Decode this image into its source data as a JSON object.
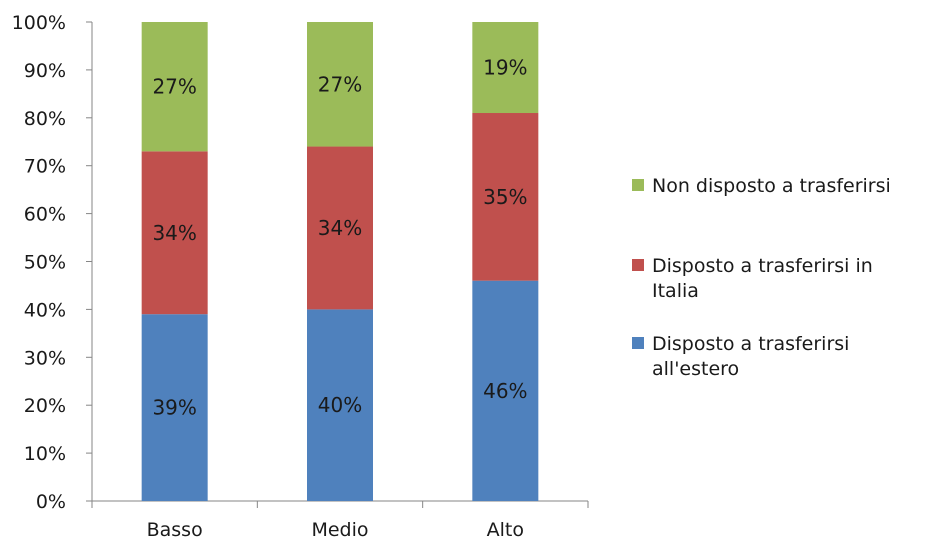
{
  "chart_data": {
    "type": "bar",
    "stacked": "percent",
    "categories": [
      "Basso",
      "Medio",
      "Alto"
    ],
    "series": [
      {
        "name": "Disposto a trasferirsi all'estero",
        "values": [
          39,
          40,
          46
        ],
        "labels": [
          "39%",
          "40%",
          "46%"
        ],
        "color": "#4f81bd"
      },
      {
        "name": "Disposto a trasferirsi in Italia",
        "values": [
          34,
          34,
          35
        ],
        "labels": [
          "34%",
          "34%",
          "35%"
        ],
        "color": "#c0504d"
      },
      {
        "name": "Non disposto a trasferirsi",
        "values": [
          27,
          27,
          19
        ],
        "labels": [
          "27%",
          "27%",
          "19%"
        ],
        "color": "#9bbb59"
      }
    ],
    "ylim": [
      0,
      100
    ],
    "yticks": [
      "0%",
      "10%",
      "20%",
      "30%",
      "40%",
      "50%",
      "60%",
      "70%",
      "80%",
      "90%",
      "100%"
    ],
    "legend": {
      "position": "right",
      "items": [
        {
          "series": 2,
          "lines": [
            "Non disposto a trasferirsi"
          ]
        },
        {
          "series": 1,
          "lines": [
            "Disposto a trasferirsi in",
            "Italia"
          ]
        },
        {
          "series": 0,
          "lines": [
            "Disposto a trasferirsi",
            "all'estero"
          ]
        }
      ]
    },
    "grid": false
  }
}
